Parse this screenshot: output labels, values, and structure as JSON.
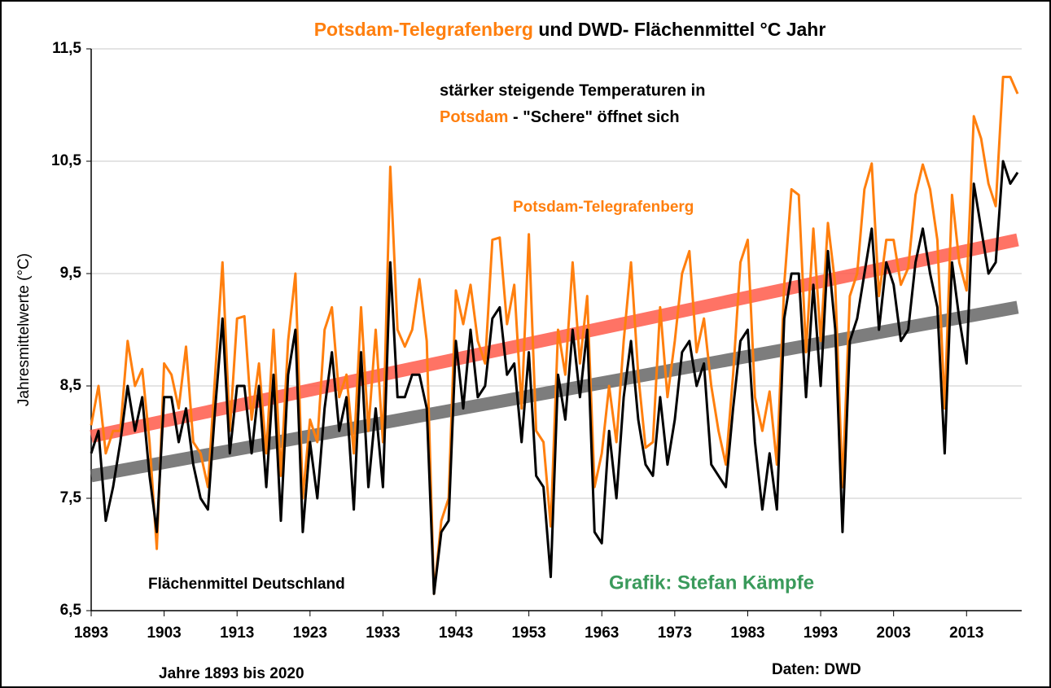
{
  "chart_data": {
    "type": "line",
    "title": [
      "Potsdam-Telegrafenberg",
      "und DWD- Flächenmittel °C Jahr"
    ],
    "annotation": [
      "stärker steigende Temperaturen in",
      "Potsdam",
      "- \"Schere\" öffnet sich"
    ],
    "y_label": "Jahresmittelwerte (°C)",
    "x_label": "Jahre 1893 bis 2020",
    "source": "Daten: DWD",
    "credit": "Grafik: Stefan Kämpfe",
    "xlim": [
      1893,
      2020
    ],
    "ylim": [
      6.5,
      11.5
    ],
    "xticks": [
      1893,
      1903,
      1913,
      1923,
      1933,
      1943,
      1953,
      1963,
      1973,
      1983,
      1993,
      2003,
      2013
    ],
    "yticks": [
      {
        "value": 6.5,
        "label": "6,5"
      },
      {
        "value": 7.5,
        "label": "7,5"
      },
      {
        "value": 8.5,
        "label": "8,5"
      },
      {
        "value": 9.5,
        "label": "9,5"
      },
      {
        "value": 10.5,
        "label": "10,5"
      },
      {
        "value": 11.5,
        "label": "11,5"
      }
    ],
    "grid": true,
    "x": [
      1893,
      1894,
      1895,
      1896,
      1897,
      1898,
      1899,
      1900,
      1901,
      1902,
      1903,
      1904,
      1905,
      1906,
      1907,
      1908,
      1909,
      1910,
      1911,
      1912,
      1913,
      1914,
      1915,
      1916,
      1917,
      1918,
      1919,
      1920,
      1921,
      1922,
      1923,
      1924,
      1925,
      1926,
      1927,
      1928,
      1929,
      1930,
      1931,
      1932,
      1933,
      1934,
      1935,
      1936,
      1937,
      1938,
      1939,
      1940,
      1941,
      1942,
      1943,
      1944,
      1945,
      1946,
      1947,
      1948,
      1949,
      1950,
      1951,
      1952,
      1953,
      1954,
      1955,
      1956,
      1957,
      1958,
      1959,
      1960,
      1961,
      1962,
      1963,
      1964,
      1965,
      1966,
      1967,
      1968,
      1969,
      1970,
      1971,
      1972,
      1973,
      1974,
      1975,
      1976,
      1977,
      1978,
      1979,
      1980,
      1981,
      1982,
      1983,
      1984,
      1985,
      1986,
      1987,
      1988,
      1989,
      1990,
      1991,
      1992,
      1993,
      1994,
      1995,
      1996,
      1997,
      1998,
      1999,
      2000,
      2001,
      2002,
      2003,
      2004,
      2005,
      2006,
      2007,
      2008,
      2009,
      2010,
      2011,
      2012,
      2013,
      2014,
      2015,
      2016,
      2017,
      2018,
      2019,
      2020
    ],
    "series": [
      {
        "name": "Potsdam-Telegrafenberg",
        "color": "#ff7f0e",
        "values": [
          8.15,
          8.5,
          7.9,
          8.1,
          8.1,
          8.9,
          8.5,
          8.65,
          8.0,
          7.05,
          8.7,
          8.6,
          8.3,
          8.85,
          8.0,
          7.9,
          7.6,
          8.6,
          9.6,
          8.1,
          9.1,
          9.12,
          8.2,
          8.7,
          7.9,
          9.0,
          7.7,
          8.9,
          9.5,
          7.5,
          8.2,
          8.0,
          9.0,
          9.2,
          8.4,
          8.6,
          7.9,
          9.2,
          8.1,
          9.0,
          8.0,
          10.45,
          9.0,
          8.85,
          9.0,
          9.45,
          8.9,
          6.65,
          7.3,
          7.5,
          9.35,
          9.05,
          9.4,
          8.9,
          8.7,
          9.8,
          9.82,
          9.05,
          9.4,
          8.3,
          9.85,
          8.1,
          8.0,
          7.25,
          9.0,
          8.6,
          9.6,
          8.7,
          9.3,
          7.6,
          7.9,
          8.5,
          8.0,
          8.9,
          9.6,
          8.6,
          7.95,
          8.0,
          9.2,
          8.4,
          8.9,
          9.5,
          9.7,
          8.8,
          9.1,
          8.5,
          8.1,
          7.8,
          8.6,
          9.6,
          9.8,
          8.4,
          8.1,
          8.45,
          7.8,
          9.4,
          10.25,
          10.2,
          8.8,
          9.9,
          8.9,
          9.95,
          9.4,
          7.6,
          9.3,
          9.5,
          10.25,
          10.48,
          9.3,
          9.8,
          9.8,
          9.4,
          9.55,
          10.2,
          10.47,
          10.25,
          9.8,
          8.3,
          10.2,
          9.6,
          9.35,
          10.9,
          10.7,
          10.3,
          10.1,
          11.25,
          11.25,
          11.1
        ]
      },
      {
        "name": "Flächenmittel Deutschland",
        "color": "#000000",
        "values": [
          7.9,
          8.1,
          7.3,
          7.6,
          8.0,
          8.5,
          8.1,
          8.4,
          7.7,
          7.2,
          8.4,
          8.4,
          8.0,
          8.3,
          7.8,
          7.5,
          7.4,
          8.3,
          9.1,
          7.9,
          8.5,
          8.5,
          7.9,
          8.5,
          7.6,
          8.6,
          7.3,
          8.6,
          9.0,
          7.2,
          8.0,
          7.5,
          8.3,
          8.8,
          8.1,
          8.4,
          7.4,
          8.8,
          7.6,
          8.3,
          7.6,
          9.6,
          8.4,
          8.4,
          8.6,
          8.6,
          8.3,
          6.65,
          7.2,
          7.3,
          8.9,
          8.3,
          9.0,
          8.4,
          8.5,
          9.1,
          9.2,
          8.6,
          8.7,
          8.0,
          8.8,
          7.7,
          7.6,
          6.8,
          8.6,
          8.2,
          9.0,
          8.4,
          9.0,
          7.2,
          7.1,
          8.1,
          7.5,
          8.4,
          8.9,
          8.2,
          7.8,
          7.7,
          8.4,
          7.8,
          8.2,
          8.8,
          8.9,
          8.5,
          8.7,
          7.8,
          7.7,
          7.6,
          8.3,
          8.9,
          9.0,
          8.0,
          7.4,
          7.9,
          7.4,
          9.1,
          9.5,
          9.5,
          8.4,
          9.4,
          8.5,
          9.7,
          9.0,
          7.2,
          8.9,
          9.1,
          9.5,
          9.9,
          9.0,
          9.6,
          9.4,
          8.9,
          9.0,
          9.6,
          9.9,
          9.5,
          9.2,
          7.9,
          9.6,
          9.1,
          8.7,
          10.3,
          9.9,
          9.5,
          9.6,
          10.5,
          10.3,
          10.4
        ]
      }
    ],
    "trends": [
      {
        "x": [
          1893,
          2020
        ],
        "values": [
          8.05,
          9.8
        ],
        "color": "#ff5a4a"
      },
      {
        "x": [
          1893,
          2020
        ],
        "values": [
          7.7,
          9.2
        ],
        "color": "#666666"
      }
    ],
    "credit_color": "#3a9a5b"
  }
}
